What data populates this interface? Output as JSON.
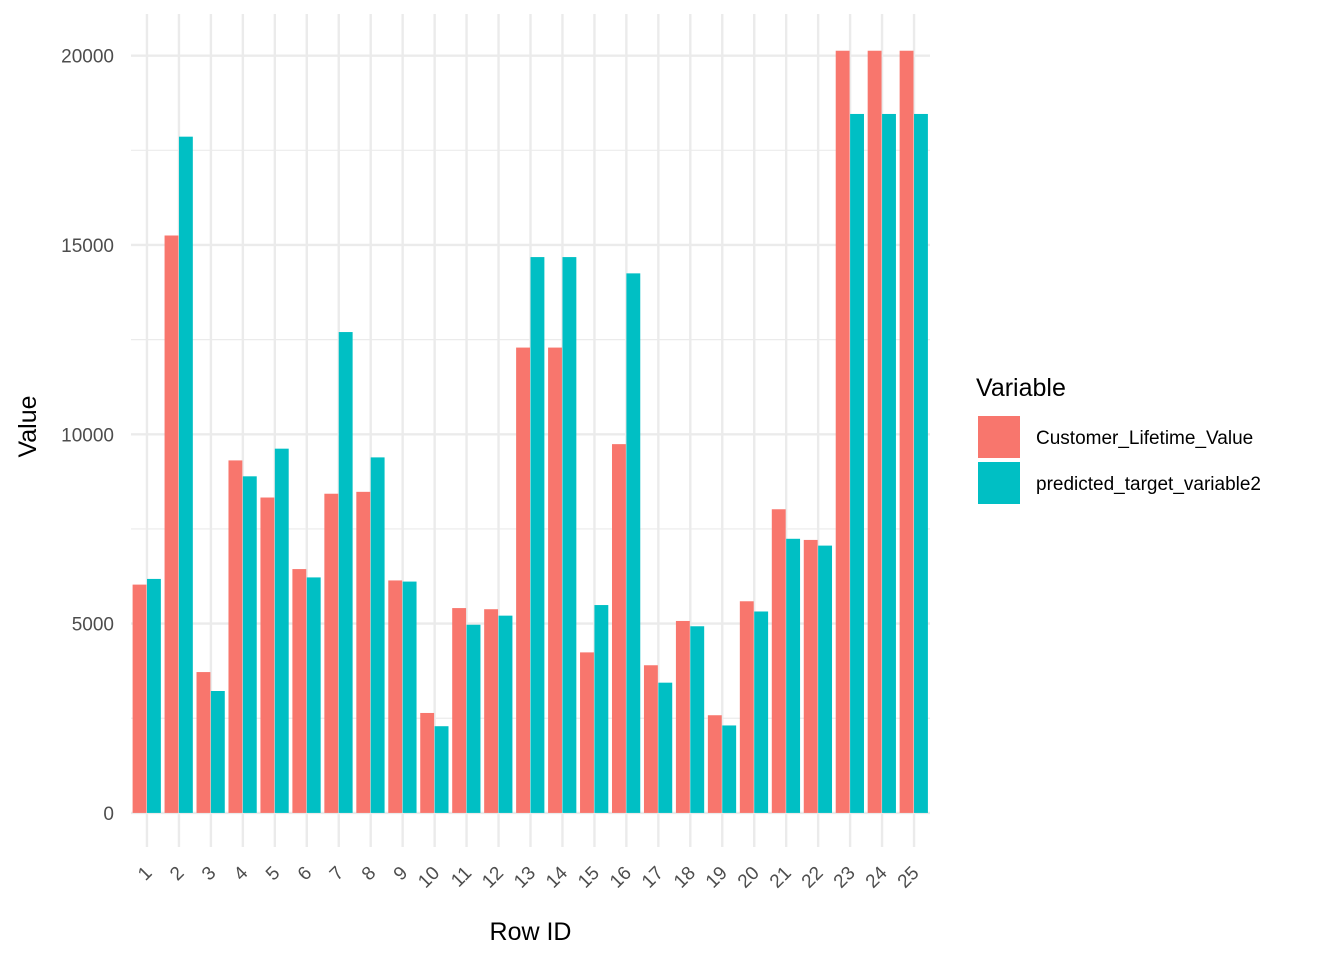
{
  "chart_data": {
    "type": "bar",
    "xlabel": "Row ID",
    "ylabel": "Value",
    "categories": [
      "1",
      "2",
      "3",
      "4",
      "5",
      "6",
      "7",
      "8",
      "9",
      "10",
      "11",
      "12",
      "13",
      "14",
      "15",
      "16",
      "17",
      "18",
      "19",
      "20",
      "21",
      "22",
      "23",
      "24",
      "25"
    ],
    "series": [
      {
        "name": "Customer_Lifetime_Value",
        "color": "#F8766D",
        "values": [
          6030,
          15250,
          3720,
          9310,
          8330,
          6440,
          8430,
          8480,
          6140,
          2640,
          5410,
          5380,
          12290,
          12290,
          4240,
          9740,
          3900,
          5070,
          2580,
          5590,
          8020,
          7210,
          20130,
          20130,
          20130
        ]
      },
      {
        "name": "predicted_target_variable2",
        "color": "#00BFC4",
        "values": [
          6180,
          17860,
          3220,
          8890,
          9620,
          6220,
          12700,
          9390,
          6110,
          2290,
          4970,
          5210,
          14680,
          14680,
          5490,
          14250,
          3440,
          4930,
          2310,
          5320,
          7240,
          7060,
          18460,
          18460,
          18460
        ]
      }
    ],
    "ylim": [
      -900,
      21100
    ],
    "y_ticks": [
      0,
      5000,
      10000,
      15000,
      20000
    ],
    "y_tick_labels": [
      "0",
      "5000",
      "10000",
      "15000",
      "20000"
    ],
    "grid": true,
    "legend": {
      "title": "Variable",
      "placement": "right"
    }
  }
}
